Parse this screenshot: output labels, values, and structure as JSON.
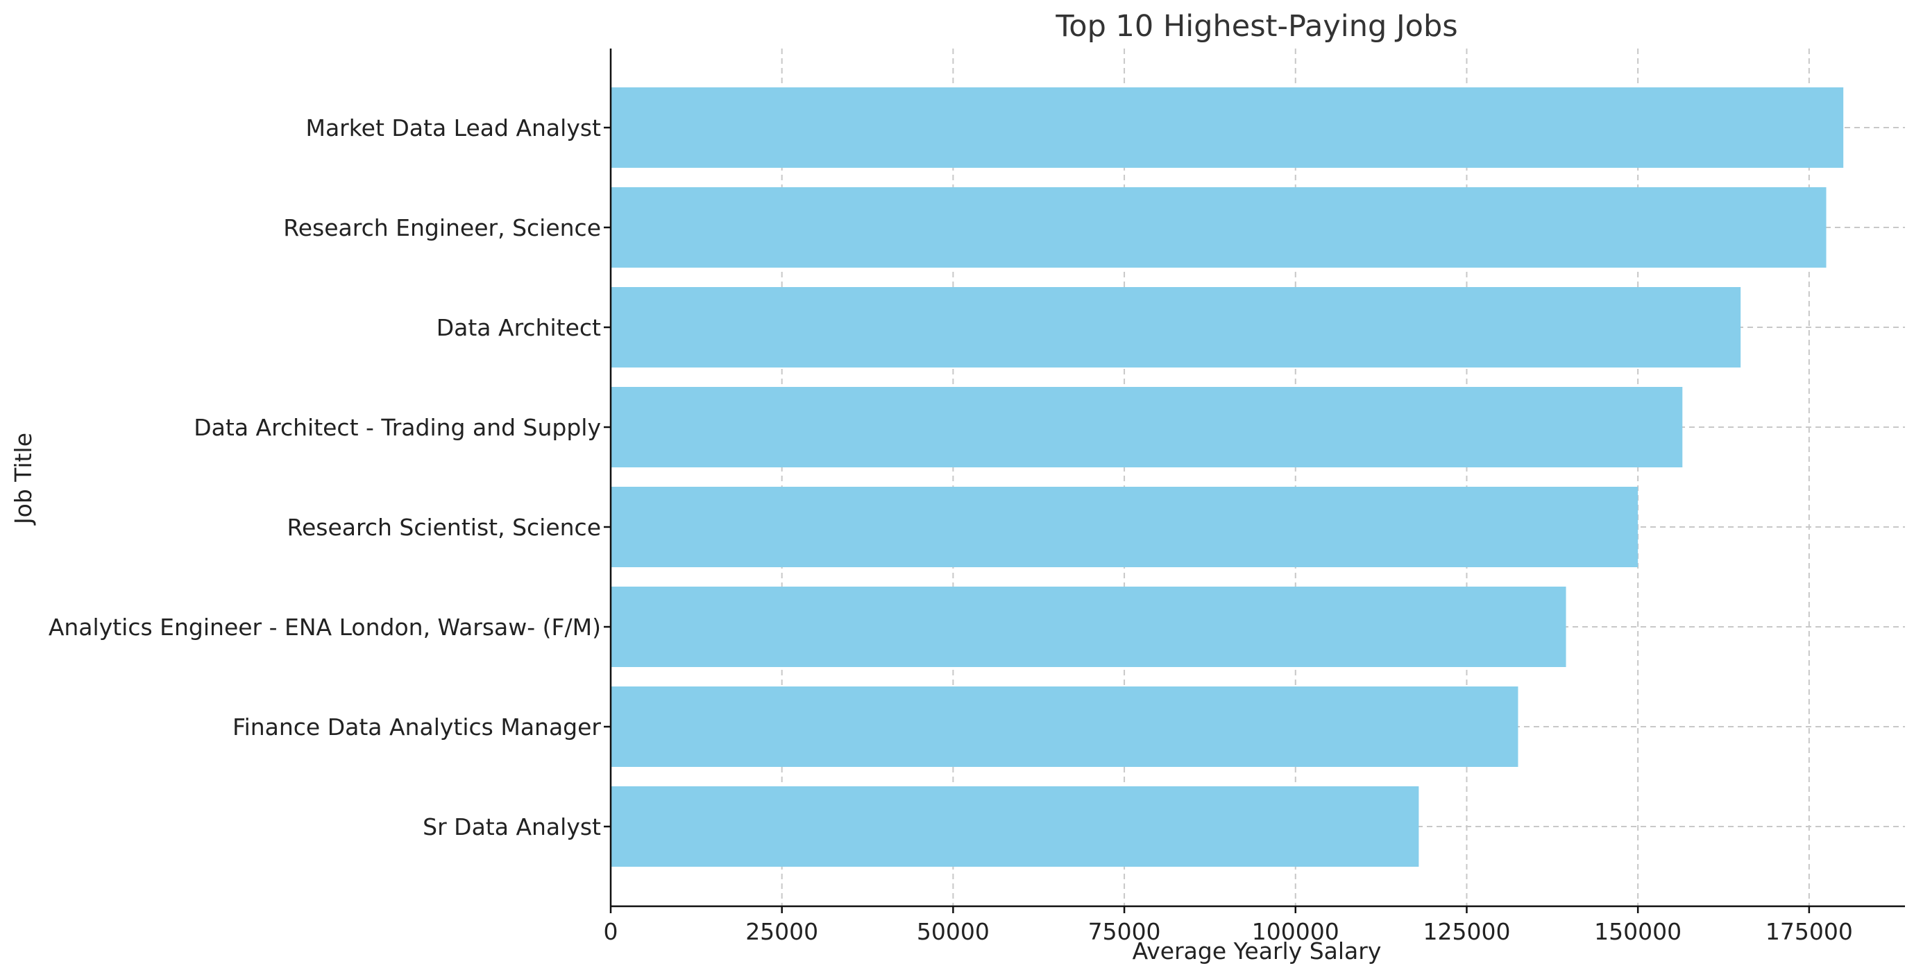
{
  "chart_data": {
    "type": "bar",
    "orientation": "horizontal",
    "title": "Top 10 Highest-Paying Jobs",
    "xlabel": "Average Yearly Salary",
    "ylabel": "Job Title",
    "categories": [
      "Market Data Lead Analyst",
      "Research Engineer, Science",
      "Data Architect",
      "Data Architect - Trading and Supply",
      "Research Scientist, Science",
      "Analytics Engineer - ENA London, Warsaw- (F/M)",
      "Finance Data Analytics Manager",
      "Sr Data Analyst"
    ],
    "values": [
      180000,
      177500,
      165000,
      156500,
      150000,
      139500,
      132500,
      118000
    ],
    "xlim": [
      0,
      189000
    ],
    "xticks": [
      0,
      25000,
      50000,
      75000,
      100000,
      125000,
      150000,
      175000
    ],
    "xtick_labels": [
      "0",
      "25000",
      "50000",
      "75000",
      "100000",
      "125000",
      "150000",
      "175000"
    ],
    "grid": true,
    "legend": null,
    "colors": {
      "bar": "#87CEEB",
      "grid": "#c8c8c8",
      "axis": "#111111",
      "title": "#333333"
    }
  }
}
